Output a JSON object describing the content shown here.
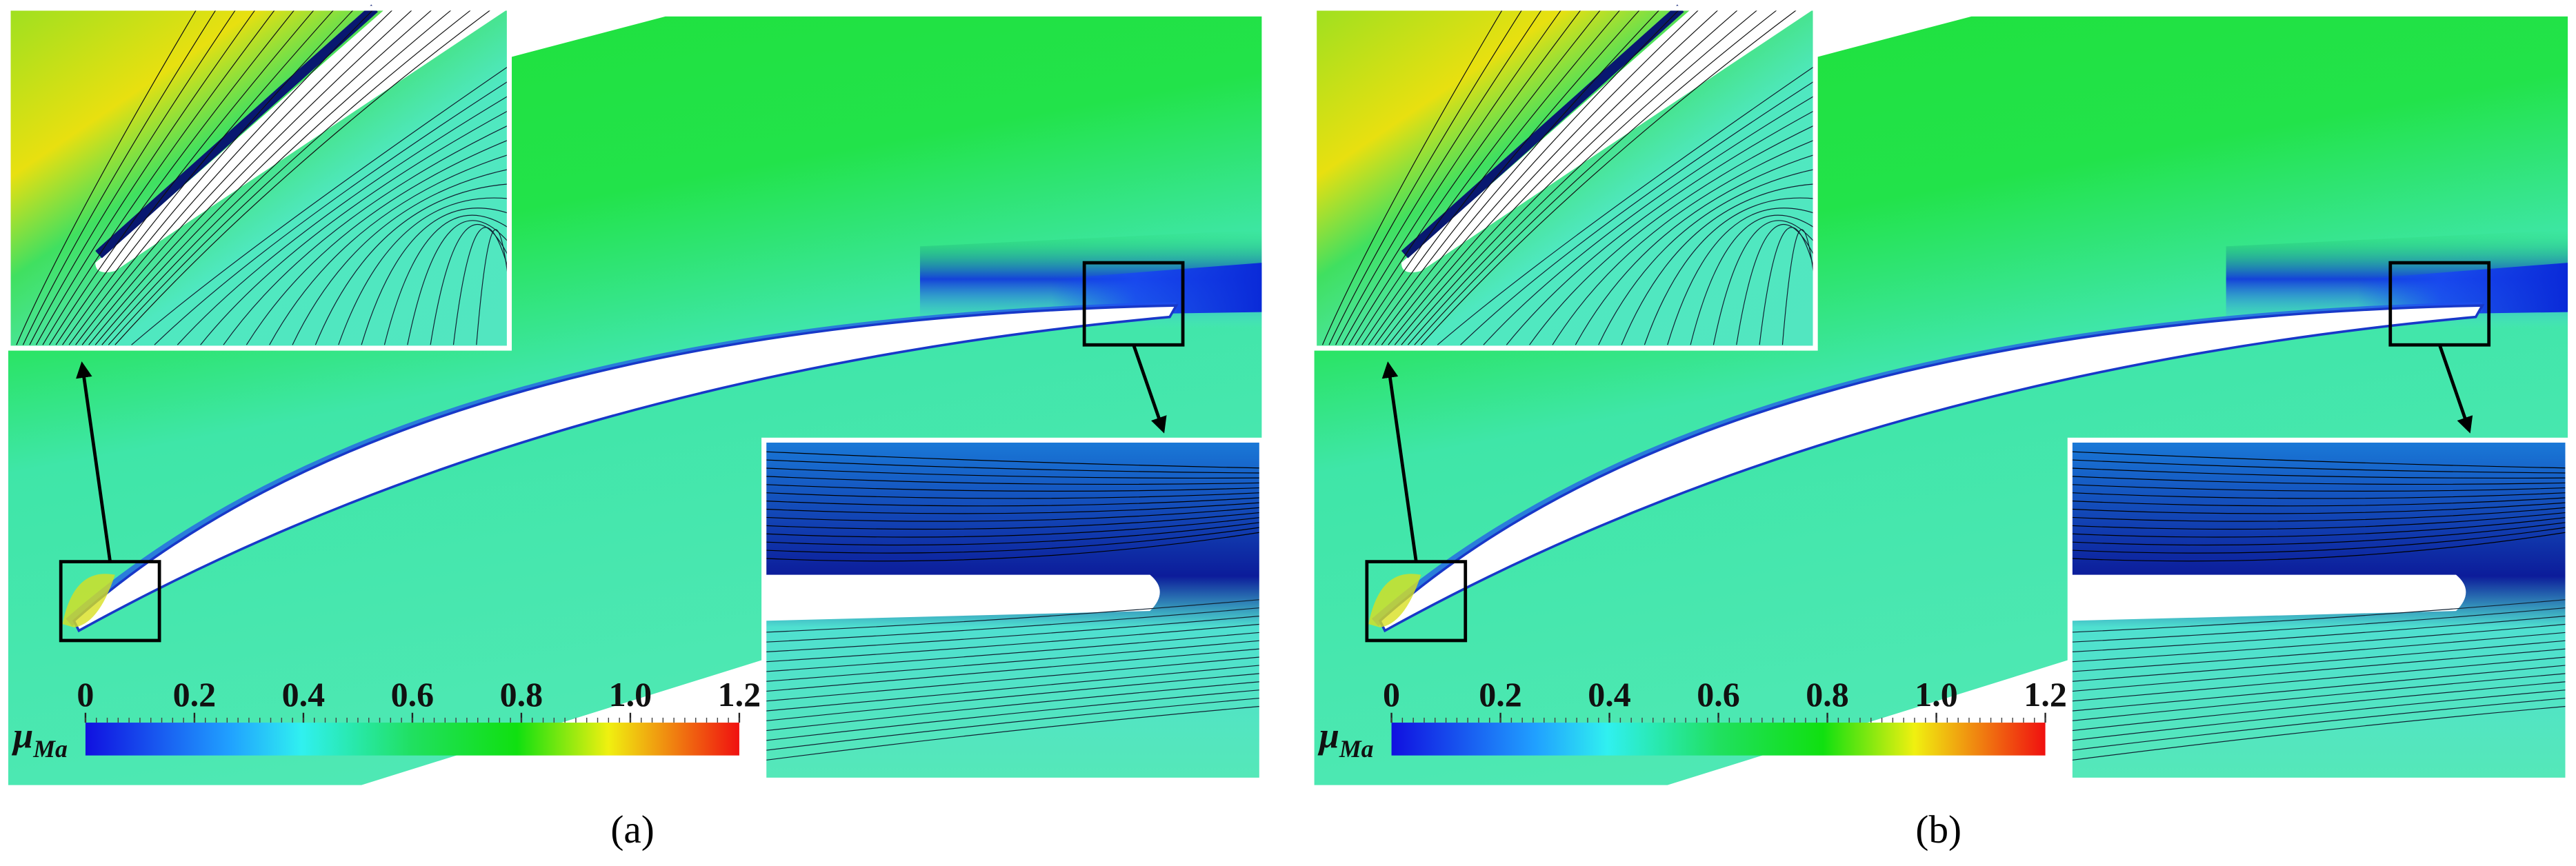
{
  "panels": [
    {
      "label": "(a)",
      "colorbar": {
        "symbol": "μ",
        "subscript": "Ma",
        "ticks": [
          "0",
          "0.2",
          "0.4",
          "0.6",
          "0.8",
          "1.0",
          "1.2"
        ]
      }
    },
    {
      "label": "(b)",
      "colorbar": {
        "symbol": "μ",
        "subscript": "Ma",
        "ticks": [
          "0",
          "0.2",
          "0.4",
          "0.6",
          "0.8",
          "1.0",
          "1.2"
        ]
      }
    }
  ]
}
